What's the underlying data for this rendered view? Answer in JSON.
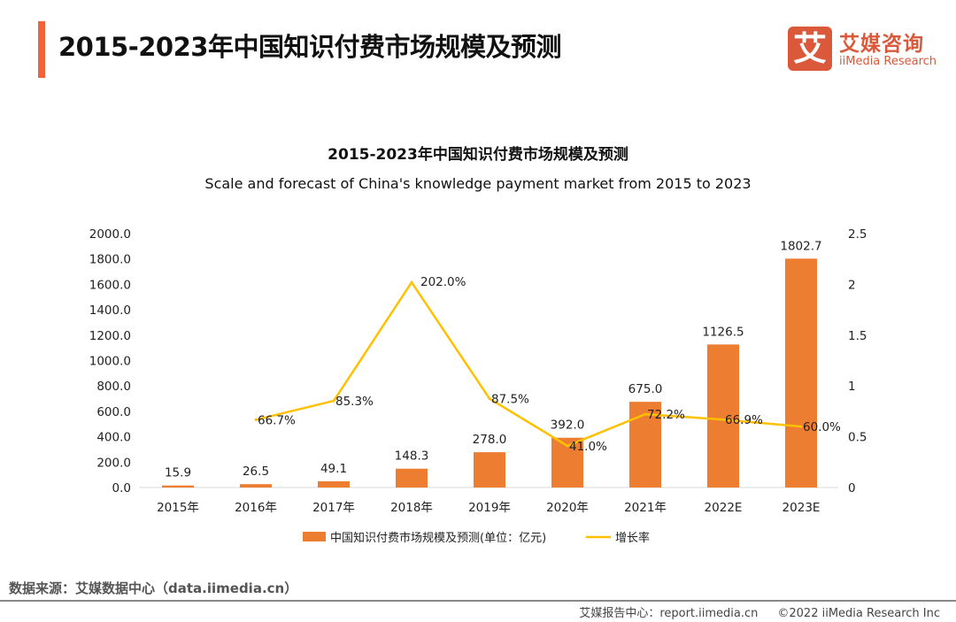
{
  "header": {
    "title": "2015-2023年中国知识付费市场规模及预测",
    "logo_cn": "艾媒咨询",
    "logo_en": "iiMedia Research",
    "logo_mark": "艾"
  },
  "colors": {
    "accent": "#f0643a",
    "bar": "#ed7d31",
    "line": "#ffc000",
    "logo": "#d9593a"
  },
  "chart_data": {
    "type": "bar+line",
    "title": "2015-2023年中国知识付费市场规模及预测",
    "subtitle": "Scale and forecast of China's knowledge payment market from 2015 to 2023",
    "categories": [
      "2015年",
      "2016年",
      "2017年",
      "2018年",
      "2019年",
      "2020年",
      "2021年",
      "2022E",
      "2023E"
    ],
    "series": [
      {
        "name": "中国知识付费市场规模及预测(单位：亿元)",
        "type": "bar",
        "axis": "left",
        "values": [
          15.9,
          26.5,
          49.1,
          148.3,
          278.0,
          392.0,
          675.0,
          1126.5,
          1802.7
        ],
        "labels": [
          "15.9",
          "26.5",
          "49.1",
          "148.3",
          "278.0",
          "392.0",
          "675.0",
          "1126.5",
          "1802.7"
        ]
      },
      {
        "name": "增长率",
        "type": "line",
        "axis": "right",
        "values": [
          null,
          0.667,
          0.853,
          2.02,
          0.875,
          0.41,
          0.722,
          0.669,
          0.6
        ],
        "labels": [
          "",
          "66.7%",
          "85.3%",
          "202.0%",
          "87.5%",
          "41.0%",
          "72.2%",
          "66.9%",
          "60.0%"
        ]
      }
    ],
    "left_axis": {
      "range": [
        0,
        2000
      ],
      "ticks": [
        "0.0",
        "200.0",
        "400.0",
        "600.0",
        "800.0",
        "1000.0",
        "1200.0",
        "1400.0",
        "1600.0",
        "1800.0",
        "2000.0"
      ]
    },
    "right_axis": {
      "range": [
        0,
        2.5
      ],
      "ticks": [
        "0",
        "0.5",
        "1",
        "1.5",
        "2",
        "2.5"
      ]
    },
    "grid": false,
    "legend": "bottom"
  },
  "footer": {
    "source": "数据来源：艾媒数据中心（data.iimedia.cn）",
    "report": "艾媒报告中心：report.iimedia.cn",
    "copyright": "©2022  iiMedia Research  Inc"
  }
}
